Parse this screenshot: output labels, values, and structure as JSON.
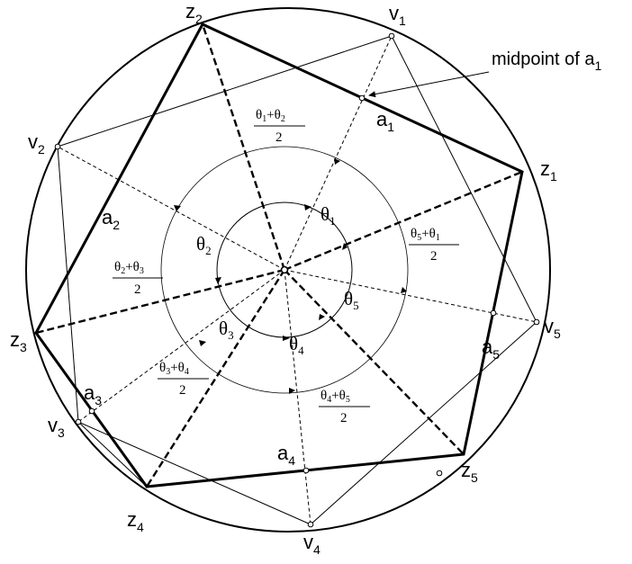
{
  "vertices_z": [
    {
      "name": "z",
      "sub": "1"
    },
    {
      "name": "z",
      "sub": "2"
    },
    {
      "name": "z",
      "sub": "3"
    },
    {
      "name": "z",
      "sub": "4"
    },
    {
      "name": "z",
      "sub": "5"
    }
  ],
  "vertices_v": [
    {
      "name": "v",
      "sub": "1"
    },
    {
      "name": "v",
      "sub": "2"
    },
    {
      "name": "v",
      "sub": "3"
    },
    {
      "name": "v",
      "sub": "4"
    },
    {
      "name": "v",
      "sub": "5"
    }
  ],
  "edges_a": [
    {
      "name": "a",
      "sub": "1"
    },
    {
      "name": "a",
      "sub": "2"
    },
    {
      "name": "a",
      "sub": "3"
    },
    {
      "name": "a",
      "sub": "4"
    },
    {
      "name": "a",
      "sub": "5"
    }
  ],
  "angles": [
    {
      "name": "θ",
      "sub": "1"
    },
    {
      "name": "θ",
      "sub": "2"
    },
    {
      "name": "θ",
      "sub": "3"
    },
    {
      "name": "θ",
      "sub": "4"
    },
    {
      "name": "θ",
      "sub": "5"
    }
  ],
  "half_angles": [
    {
      "t1": "θ",
      "s1": "1",
      "op": "+",
      "t2": "θ",
      "s2": "2",
      "den": "2"
    },
    {
      "t1": "θ",
      "s1": "2",
      "op": "+",
      "t2": "θ",
      "s2": "3",
      "den": "2"
    },
    {
      "t1": "θ",
      "s1": "3",
      "op": "+",
      "t2": "θ",
      "s2": "4",
      "den": "2"
    },
    {
      "t1": "θ",
      "s1": "4",
      "op": "+",
      "t2": "θ",
      "s2": "5",
      "den": "2"
    },
    {
      "t1": "θ",
      "s1": "5",
      "op": "+",
      "t2": "θ",
      "s2": "1",
      "den": "2"
    }
  ],
  "annotation": {
    "text": "midpoint of a",
    "sub": "1"
  }
}
